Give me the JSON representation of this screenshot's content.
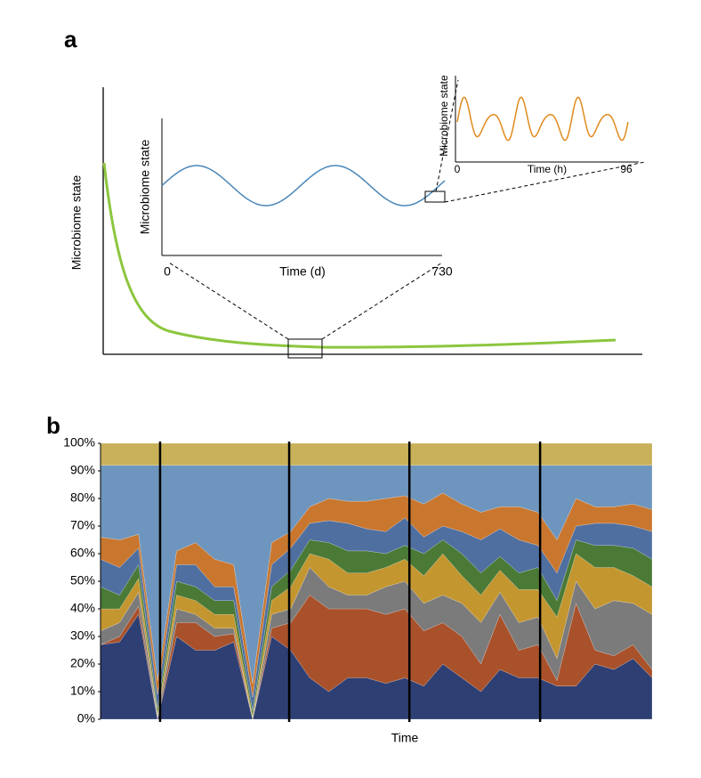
{
  "panel_a": {
    "label": "a",
    "ylabel": "Microbiome state",
    "inset_days": {
      "ylabel": "Microbiome state",
      "xlabel": "Time (d)",
      "xlim": [
        0,
        730
      ],
      "xticks": [
        0,
        730
      ]
    },
    "inset_hours": {
      "ylabel": "Microbiome state",
      "xlabel": "Time (h)",
      "xlim": [
        0,
        96
      ],
      "xticks": [
        0,
        96
      ]
    }
  },
  "chart_data": {
    "type": "stacked_area",
    "label": "b",
    "xlabel": "Time",
    "ylim": [
      0,
      100
    ],
    "yticks": [
      {
        "value": 0,
        "label": "0%"
      },
      {
        "value": 10,
        "label": "10%"
      },
      {
        "value": 20,
        "label": "20%"
      },
      {
        "value": 30,
        "label": "30%"
      },
      {
        "value": 40,
        "label": "40%"
      },
      {
        "value": 50,
        "label": "50%"
      },
      {
        "value": 60,
        "label": "60%"
      },
      {
        "value": 70,
        "label": "70%"
      },
      {
        "value": 80,
        "label": "80%"
      },
      {
        "value": 90,
        "label": "90%"
      },
      {
        "value": 100,
        "label": "100%"
      }
    ],
    "series": [
      {
        "color": "#2e3f73",
        "values": [
          27,
          28,
          38,
          0,
          30,
          25,
          25,
          28,
          0,
          30,
          25,
          15,
          10,
          15,
          15,
          13,
          15,
          12,
          20,
          15,
          10,
          18,
          15,
          15,
          12,
          12,
          20,
          18,
          22,
          15
        ]
      },
      {
        "color": "#a9512a",
        "values": [
          0,
          2,
          3,
          0,
          5,
          10,
          5,
          3,
          0,
          3,
          10,
          30,
          30,
          25,
          25,
          25,
          25,
          20,
          15,
          15,
          10,
          20,
          10,
          12,
          2,
          30,
          5,
          5,
          5,
          3
        ]
      },
      {
        "color": "#7b7b7b",
        "values": [
          5,
          5,
          5,
          1,
          5,
          3,
          3,
          2,
          0,
          5,
          5,
          10,
          8,
          5,
          5,
          10,
          10,
          10,
          10,
          12,
          15,
          8,
          10,
          10,
          8,
          8,
          15,
          20,
          15,
          20
        ]
      },
      {
        "color": "#c4962f",
        "values": [
          8,
          5,
          5,
          1,
          5,
          5,
          5,
          5,
          1,
          5,
          8,
          5,
          10,
          8,
          8,
          7,
          8,
          10,
          15,
          10,
          10,
          8,
          12,
          10,
          15,
          10,
          15,
          12,
          10,
          10
        ]
      },
      {
        "color": "#4a7a36",
        "values": [
          8,
          5,
          5,
          2,
          5,
          5,
          5,
          5,
          2,
          5,
          6,
          5,
          6,
          8,
          8,
          5,
          5,
          8,
          5,
          8,
          8,
          5,
          6,
          8,
          6,
          5,
          8,
          8,
          10,
          10
        ]
      },
      {
        "color": "#4f6fa0",
        "values": [
          10,
          10,
          6,
          5,
          6,
          8,
          5,
          5,
          5,
          8,
          8,
          6,
          8,
          10,
          8,
          8,
          10,
          6,
          5,
          8,
          12,
          10,
          12,
          8,
          10,
          5,
          8,
          8,
          8,
          10
        ]
      },
      {
        "color": "#c9772f",
        "values": [
          8,
          10,
          5,
          5,
          5,
          8,
          10,
          8,
          5,
          8,
          6,
          6,
          8,
          8,
          10,
          12,
          8,
          12,
          12,
          10,
          10,
          8,
          12,
          12,
          12,
          10,
          6,
          6,
          8,
          8
        ]
      },
      {
        "color": "#6e95bd",
        "values": [
          26,
          27,
          25,
          78,
          31,
          28,
          34,
          36,
          79,
          28,
          24,
          15,
          12,
          13,
          13,
          12,
          11,
          14,
          10,
          14,
          17,
          15,
          15,
          17,
          27,
          12,
          15,
          15,
          14,
          16
        ]
      },
      {
        "color": "#c9b15a",
        "values": [
          8,
          8,
          8,
          8,
          8,
          8,
          8,
          8,
          8,
          8,
          8,
          8,
          8,
          8,
          8,
          8,
          8,
          8,
          8,
          8,
          8,
          8,
          8,
          8,
          8,
          8,
          8,
          8,
          8,
          8
        ]
      }
    ]
  }
}
